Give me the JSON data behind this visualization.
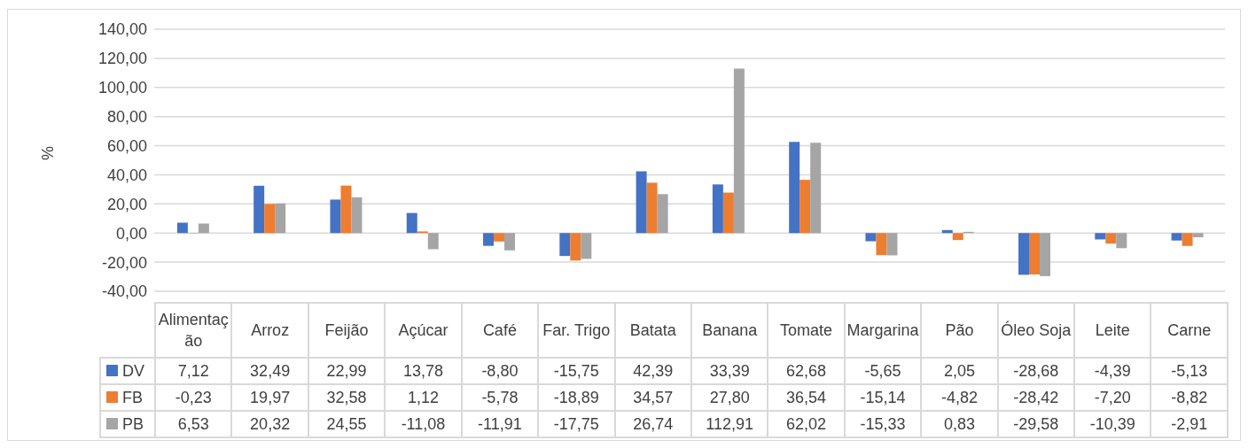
{
  "chart_data": {
    "type": "bar",
    "ylabel": "%",
    "categories": [
      "Alimentação",
      "Arroz",
      "Feijão",
      "Açúcar",
      "Café",
      "Far. Trigo",
      "Batata",
      "Banana",
      "Tomate",
      "Margarina",
      "Pão",
      "Óleo Soja",
      "Leite",
      "Carne"
    ],
    "series": [
      {
        "name": "DV",
        "color": "#4472c4",
        "values": [
          7.12,
          32.49,
          22.99,
          13.78,
          -8.8,
          -15.75,
          42.39,
          33.39,
          62.68,
          -5.65,
          2.05,
          -28.68,
          -4.39,
          -5.13
        ],
        "value_labels": [
          "7,12",
          "32,49",
          "22,99",
          "13,78",
          "-8,80",
          "-15,75",
          "42,39",
          "33,39",
          "62,68",
          "-5,65",
          "2,05",
          "-28,68",
          "-4,39",
          "-5,13"
        ]
      },
      {
        "name": "FB",
        "color": "#ed7d31",
        "values": [
          -0.23,
          19.97,
          32.58,
          1.12,
          -5.78,
          -18.89,
          34.57,
          27.8,
          36.54,
          -15.14,
          -4.82,
          -28.42,
          -7.2,
          -8.82
        ],
        "value_labels": [
          "-0,23",
          "19,97",
          "32,58",
          "1,12",
          "-5,78",
          "-18,89",
          "34,57",
          "27,80",
          "36,54",
          "-15,14",
          "-4,82",
          "-28,42",
          "-7,20",
          "-8,82"
        ]
      },
      {
        "name": "PB",
        "color": "#a5a5a5",
        "values": [
          6.53,
          20.32,
          24.55,
          -11.08,
          -11.91,
          -17.75,
          26.74,
          112.91,
          62.02,
          -15.33,
          0.83,
          -29.58,
          -10.39,
          -2.91
        ],
        "value_labels": [
          "6,53",
          "20,32",
          "24,55",
          "-11,08",
          "-11,91",
          "-17,75",
          "26,74",
          "112,91",
          "62,02",
          "-15,33",
          "0,83",
          "-29,58",
          "-10,39",
          "-2,91"
        ]
      }
    ],
    "ylim": [
      -40,
      140
    ],
    "yticks": [
      {
        "value": -40,
        "label": "-40,00"
      },
      {
        "value": -20,
        "label": "-20,00"
      },
      {
        "value": 0,
        "label": "0,00"
      },
      {
        "value": 20,
        "label": "20,00"
      },
      {
        "value": 40,
        "label": "40,00"
      },
      {
        "value": 60,
        "label": "60,00"
      },
      {
        "value": 80,
        "label": "80,00"
      },
      {
        "value": 100,
        "label": "100,00"
      },
      {
        "value": 120,
        "label": "120,00"
      },
      {
        "value": 140,
        "label": "140,00"
      }
    ],
    "grid": "y",
    "legend": "bottom"
  }
}
